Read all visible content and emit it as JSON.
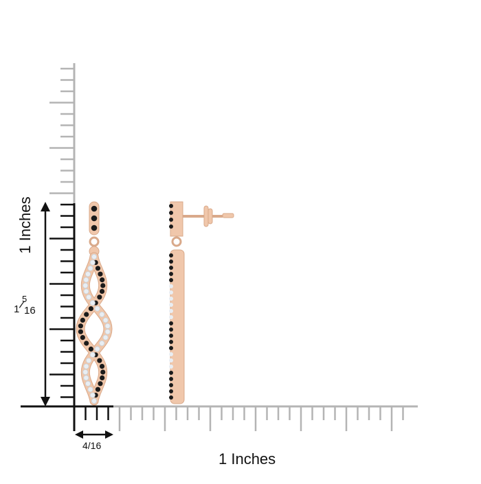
{
  "axes": {
    "y_label": "1 Inches",
    "x_label": "1 Inches"
  },
  "dimensions": {
    "height_whole": "1",
    "height_numerator": "5",
    "height_denominator": "16",
    "width": "4/16"
  },
  "colors": {
    "ruler_gray": "#b4b4b4",
    "ruler_dark": "#111111",
    "rose_gold": "#f0c7ab",
    "rose_gold_edge": "#d9a98a",
    "black_diamond": "#1b1b1b",
    "white_diamond": "#e9eef3"
  }
}
